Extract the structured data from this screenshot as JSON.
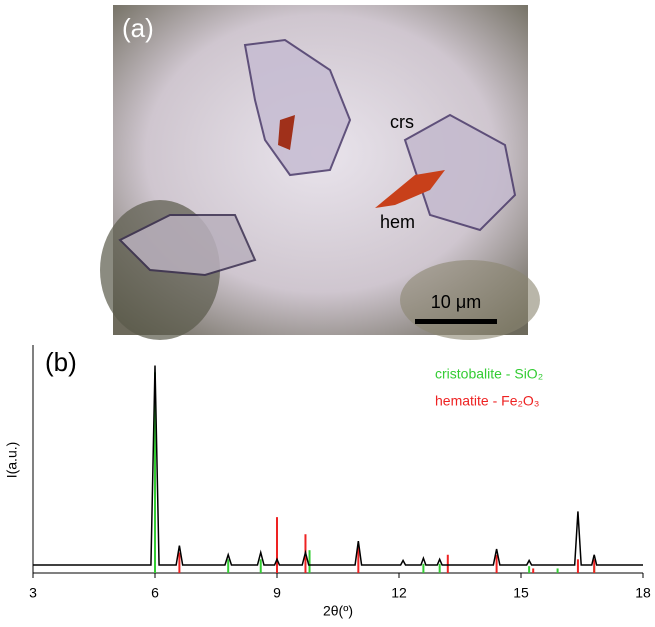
{
  "image_panel": {
    "label": "(a)",
    "annotations": [
      "crs",
      "hem"
    ],
    "scale_bar": "10 μm"
  },
  "chart_data": {
    "type": "line",
    "panel_label": "(b)",
    "xlabel": "2θ(º)",
    "ylabel": "I(a.u.)",
    "xlim": [
      3,
      18
    ],
    "xticks": [
      3,
      6,
      9,
      12,
      15,
      18
    ],
    "ylim": [
      0,
      100
    ],
    "series": [
      {
        "color": "#000000",
        "x": [
          3,
          5.9,
          6,
          6.1,
          6.52,
          6.6,
          6.68,
          7.72,
          7.8,
          7.88,
          8.52,
          8.6,
          8.68,
          8.94,
          9,
          9.06,
          9.62,
          9.7,
          9.78,
          10.92,
          11,
          11.08,
          12.04,
          12.1,
          12.16,
          12.54,
          12.6,
          12.66,
          12.94,
          13,
          13.06,
          14.32,
          14.4,
          14.48,
          15.14,
          15.2,
          15.26,
          16.32,
          16.4,
          16.48,
          16.74,
          16.8,
          16.86,
          18
        ],
        "values": [
          3.5,
          3.5,
          91,
          3.5,
          3.5,
          12,
          3.5,
          3.5,
          8,
          3.5,
          3.5,
          9,
          3.5,
          3.5,
          6,
          3.5,
          3.5,
          9,
          3.5,
          3.5,
          14,
          3.5,
          3.5,
          5.5,
          3.5,
          3.5,
          6.5,
          3.5,
          3.5,
          6,
          3.5,
          3.5,
          10.5,
          3.5,
          3.5,
          5.5,
          3.5,
          3.5,
          27,
          3.5,
          3.5,
          8,
          3.5,
          3.5
        ]
      },
      {
        "name": "cristobalite - SiO₂",
        "color": "#33cc33",
        "type": "stick",
        "x": [
          6.0,
          7.8,
          8.6,
          9.8,
          12.6,
          13.0,
          15.2,
          15.9,
          16.8
        ],
        "values": [
          88,
          6,
          6,
          10,
          4,
          4,
          3,
          2,
          3
        ]
      },
      {
        "name": "hematite - Fe₂O₃",
        "color": "#ee2222",
        "type": "stick",
        "x": [
          6.6,
          9.0,
          9.7,
          11.0,
          13.2,
          14.4,
          15.3,
          16.4,
          16.8
        ],
        "values": [
          9,
          24.5,
          17,
          12,
          8,
          8,
          2,
          6,
          6
        ]
      }
    ]
  }
}
